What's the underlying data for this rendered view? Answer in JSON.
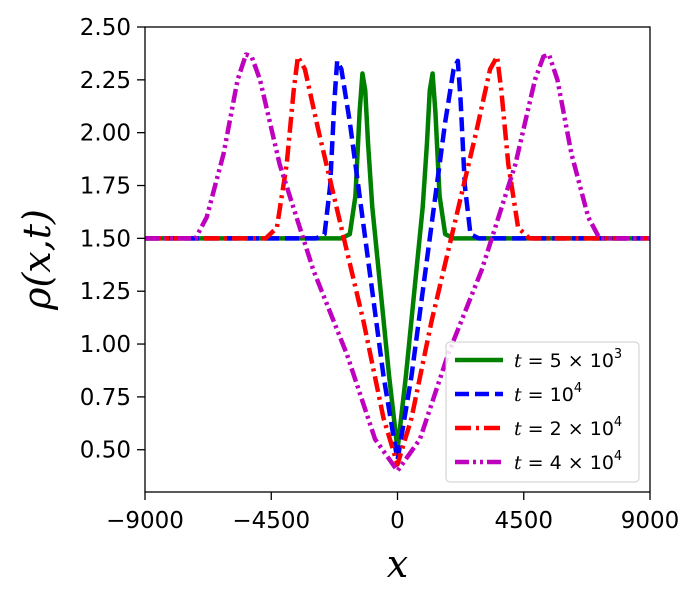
{
  "chart_data": {
    "type": "line",
    "title": "",
    "xlabel": "x",
    "ylabel": "ρ(x,t)",
    "xlim": [
      -9000,
      9000
    ],
    "ylim": [
      0.3,
      2.5
    ],
    "xticks": [
      -9000,
      -4500,
      0,
      4500,
      9000
    ],
    "xtick_labels": [
      "−9000",
      "−4500",
      "0",
      "4500",
      "9000"
    ],
    "yticks": [
      0.5,
      0.75,
      1.0,
      1.25,
      1.5,
      1.75,
      2.0,
      2.25,
      2.5
    ],
    "ytick_labels": [
      "0.50",
      "0.75",
      "1.00",
      "1.25",
      "1.50",
      "1.75",
      "2.00",
      "2.25",
      "2.50"
    ],
    "grid": false,
    "legend_position": "bottom-right",
    "series": [
      {
        "name": "t = 5 × 10^3",
        "legend": {
          "pre": "t",
          "mid": " = 5 × 10",
          "sup": "3"
        },
        "color": "#008000",
        "dash": "solid",
        "x": [
          -9000,
          -2000,
          -1700,
          -1500,
          -1350,
          -1250,
          -1150,
          -1050,
          -900,
          -600,
          -300,
          0,
          300,
          600,
          900,
          1050,
          1150,
          1250,
          1350,
          1500,
          1700,
          2000,
          9000
        ],
        "y": [
          1.5,
          1.5,
          1.52,
          1.7,
          2.1,
          2.28,
          2.2,
          1.95,
          1.65,
          1.25,
          0.85,
          0.5,
          0.85,
          1.25,
          1.65,
          1.95,
          2.2,
          2.28,
          2.1,
          1.7,
          1.52,
          1.5,
          1.5
        ]
      },
      {
        "name": "t = 10^4",
        "legend": {
          "pre": "t",
          "mid": " = 10",
          "sup": "4"
        },
        "color": "#0000ff",
        "dash": "dashed",
        "x": [
          -9000,
          -2900,
          -2600,
          -2400,
          -2250,
          -2150,
          -2000,
          -1700,
          -1300,
          -900,
          -500,
          0,
          500,
          900,
          1300,
          1700,
          2000,
          2150,
          2250,
          2400,
          2600,
          2900,
          9000
        ],
        "y": [
          1.5,
          1.5,
          1.52,
          1.75,
          2.15,
          2.34,
          2.3,
          2.05,
          1.65,
          1.25,
          0.85,
          0.45,
          0.85,
          1.25,
          1.65,
          2.05,
          2.3,
          2.34,
          2.15,
          1.75,
          1.52,
          1.5,
          1.5
        ]
      },
      {
        "name": "t = 2 × 10^4",
        "legend": {
          "pre": "t",
          "mid": " = 2 × 10",
          "sup": "4"
        },
        "color": "#ff0000",
        "dash": "dashdot",
        "x": [
          -9000,
          -4700,
          -4300,
          -3950,
          -3700,
          -3550,
          -3300,
          -2800,
          -2000,
          -1200,
          -500,
          0,
          500,
          1200,
          2000,
          2800,
          3300,
          3550,
          3700,
          3950,
          4300,
          4700,
          9000
        ],
        "y": [
          1.5,
          1.5,
          1.55,
          1.85,
          2.2,
          2.36,
          2.3,
          2.0,
          1.55,
          1.1,
          0.65,
          0.43,
          0.65,
          1.1,
          1.55,
          2.0,
          2.3,
          2.36,
          2.2,
          1.85,
          1.55,
          1.5,
          1.5
        ]
      },
      {
        "name": "t = 4 × 10^4",
        "legend": {
          "pre": "t",
          "mid": " = 4 × 10",
          "sup": "4"
        },
        "color": "#bf00bf",
        "dash": "dashdotdot",
        "x": [
          -9000,
          -7200,
          -6800,
          -6200,
          -5700,
          -5400,
          -5200,
          -4900,
          -4200,
          -3000,
          -1800,
          -800,
          0,
          800,
          1800,
          3000,
          4200,
          4900,
          5200,
          5400,
          5700,
          6200,
          6800,
          7200,
          9000
        ],
        "y": [
          1.5,
          1.5,
          1.6,
          1.9,
          2.25,
          2.37,
          2.36,
          2.25,
          1.85,
          1.35,
          0.95,
          0.55,
          0.4,
          0.55,
          0.95,
          1.35,
          1.85,
          2.25,
          2.36,
          2.37,
          2.25,
          1.9,
          1.6,
          1.5,
          1.5
        ]
      }
    ]
  }
}
